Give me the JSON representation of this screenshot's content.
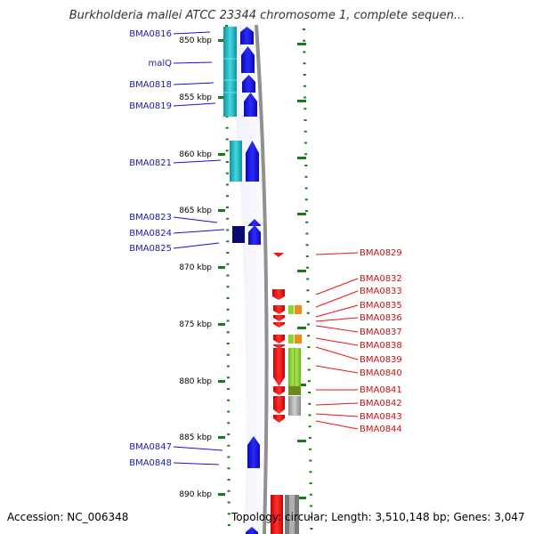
{
  "title": "Burkholderia mallei ATCC 23344 chromosome 1, complete sequen...",
  "footer": {
    "accession": "Accession: NC_006348",
    "topology": "Topology: circular; Length: 3,510,148 bp; Genes: 3,047"
  },
  "ticks": [
    {
      "label": "850 kbp",
      "kbp": 850
    },
    {
      "label": "855 kbp",
      "kbp": 855
    },
    {
      "label": "860 kbp",
      "kbp": 860
    },
    {
      "label": "865 kbp",
      "kbp": 865
    },
    {
      "label": "870 kbp",
      "kbp": 870
    },
    {
      "label": "875 kbp",
      "kbp": 875
    },
    {
      "label": "880 kbp",
      "kbp": 880
    },
    {
      "label": "885 kbp",
      "kbp": 885
    },
    {
      "label": "890 kbp",
      "kbp": 890
    }
  ],
  "genes_forward": [
    {
      "name": "BMA0816"
    },
    {
      "name": "malQ"
    },
    {
      "name": "BMA0818"
    },
    {
      "name": "BMA0819"
    },
    {
      "name": "BMA0821"
    },
    {
      "name": "BMA0823"
    },
    {
      "name": "BMA0824"
    },
    {
      "name": "BMA0825"
    },
    {
      "name": "BMA0847"
    },
    {
      "name": "BMA0848"
    }
  ],
  "genes_reverse": [
    {
      "name": "BMA0829"
    },
    {
      "name": "BMA0832"
    },
    {
      "name": "BMA0833"
    },
    {
      "name": "BMA0835"
    },
    {
      "name": "BMA0836"
    },
    {
      "name": "BMA0837"
    },
    {
      "name": "BMA0838"
    },
    {
      "name": "BMA0839"
    },
    {
      "name": "BMA0840"
    },
    {
      "name": "BMA0841"
    },
    {
      "name": "BMA0842"
    },
    {
      "name": "BMA0843"
    },
    {
      "name": "BMA0844"
    }
  ],
  "colors": {
    "forward": "#1010e8",
    "reverse": "#ee1111",
    "cyan": "#22b8c4",
    "navy": "#0a0a70",
    "ticks": "#1a7a1a",
    "lime": "#88d830",
    "olive": "#6a8a20",
    "orange": "#f08a10",
    "gray": "#a0a0a0",
    "backbone": "#909090"
  }
}
